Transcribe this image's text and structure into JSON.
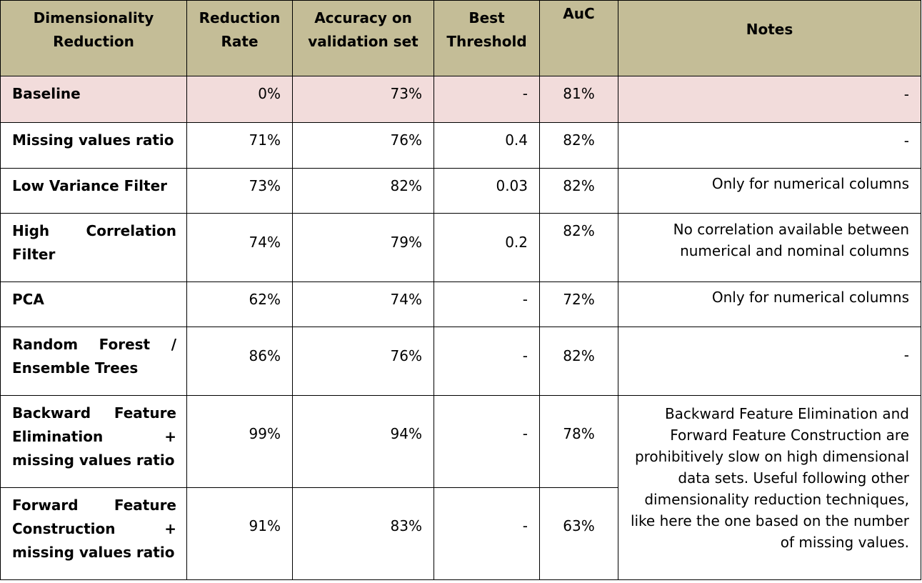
{
  "headers": {
    "method": "Dimensionality Reduction",
    "reduction_rate": "Reduction Rate",
    "accuracy": "Accuracy on validation set",
    "best_threshold": "Best Threshold",
    "auc": "AuC",
    "notes": "Notes"
  },
  "rows": [
    {
      "method": "Baseline",
      "reduction_rate": "0%",
      "accuracy": "73%",
      "best_threshold": "-",
      "auc": "81%",
      "notes": "-"
    },
    {
      "method": "Missing values ratio",
      "reduction_rate": "71%",
      "accuracy": "76%",
      "best_threshold": "0.4",
      "auc": "82%",
      "notes": "-"
    },
    {
      "method": "Low Variance Filter",
      "reduction_rate": "73%",
      "accuracy": "82%",
      "best_threshold": "0.03",
      "auc": "82%",
      "notes": "Only for numerical columns"
    },
    {
      "method": "High Correlation Filter",
      "reduction_rate": "74%",
      "accuracy": "79%",
      "best_threshold": "0.2",
      "auc": "82%",
      "notes": "No correlation available between numerical and nominal columns"
    },
    {
      "method": "PCA",
      "reduction_rate": "62%",
      "accuracy": "74%",
      "best_threshold": "-",
      "auc": "72%",
      "notes": "Only for numerical columns"
    },
    {
      "method": "Random Forest / Ensemble Trees",
      "reduction_rate": "86%",
      "accuracy": "76%",
      "best_threshold": "-",
      "auc": "82%",
      "notes": "-"
    },
    {
      "method": "Backward Feature Elimination + missing values ratio",
      "reduction_rate": "99%",
      "accuracy": "94%",
      "best_threshold": "-",
      "auc": "78%",
      "notes": "Backward Feature Elimination and Forward Feature Construction are prohibitively slow on high dimensional data sets. Useful following other dimensionality reduction techniques, like here the one based on the number of missing values."
    },
    {
      "method": "Forward Feature Construction + missing values ratio",
      "reduction_rate": "91%",
      "accuracy": "83%",
      "best_threshold": "-",
      "auc": "63%"
    }
  ],
  "colors": {
    "header_bg": "#c4bd97",
    "baseline_bg": "#f2dcdb"
  }
}
